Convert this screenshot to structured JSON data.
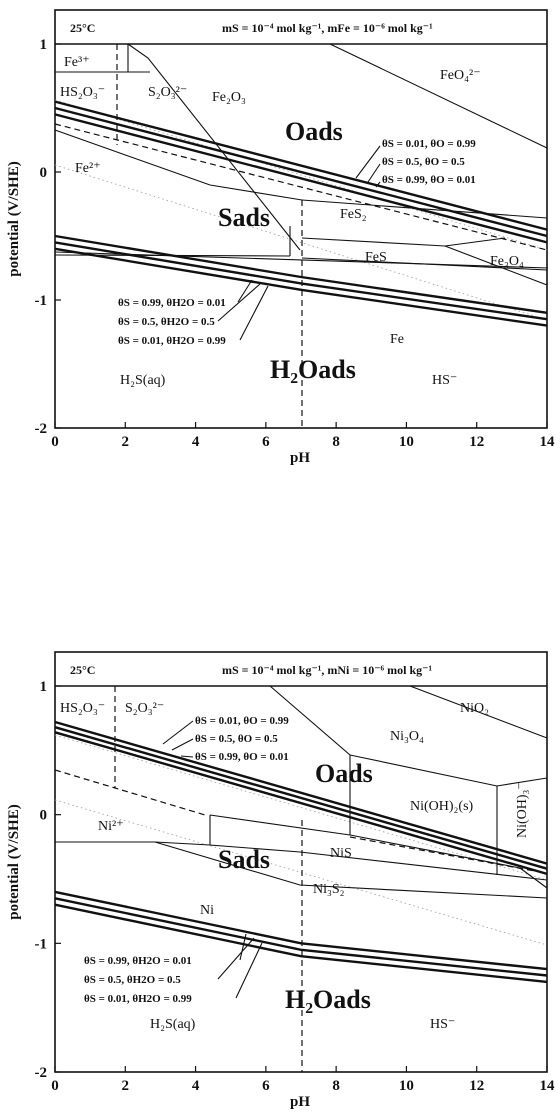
{
  "charts": [
    {
      "id": "fe",
      "header": {
        "temp": "25°C",
        "conc": "mS = 10⁻⁴ mol kg⁻¹, mFe = 10⁻⁶ mol kg⁻¹"
      },
      "regions": {
        "fe3": "Fe³⁺",
        "hs2o3": "HS₂O₃⁻",
        "s2o3": "S₂O₃²⁻",
        "fe2o3": "Fe₂O₃",
        "feo4": "FeO₄²⁻",
        "oads": "Oads",
        "fe2": "Fe²⁺",
        "sads": "Sads",
        "fes2": "FeS₂",
        "fes": "FeS",
        "fe3o4": "Fe₃O₄",
        "h2oads": "H₂Oads",
        "fe": "Fe",
        "h2s": "H₂S(aq)",
        "hs": "HS⁻"
      },
      "theta_o": [
        "θS = 0.01, θO = 0.99",
        "θS = 0.5, θO = 0.5",
        "θS = 0.99, θO = 0.01"
      ],
      "theta_h2o": [
        "θS = 0.99, θH2O = 0.01",
        "θS = 0.5, θH2O = 0.5",
        "θS = 0.01, θH2O = 0.99"
      ]
    },
    {
      "id": "ni",
      "header": {
        "temp": "25°C",
        "conc": "mS = 10⁻⁴ mol kg⁻¹, mNi = 10⁻⁶ mol kg⁻¹"
      },
      "regions": {
        "hs2o3": "HS₂O₃⁻",
        "s2o3": "S₂O₃²⁻",
        "nio2": "NiO₂",
        "ni3o4": "Ni₃O₄",
        "oads": "Oads",
        "nioh2": "Ni(OH)₂(s)",
        "nioh3": "Ni(OH)₃⁻",
        "ni2": "Ni²⁺",
        "sads": "Sads",
        "nis": "NiS",
        "ni3s2": "Ni₃S₂",
        "ni": "Ni",
        "h2oads": "H₂Oads",
        "h2s": "H₂S(aq)",
        "hs": "HS⁻"
      },
      "theta_o": [
        "θS = 0.01, θO = 0.99",
        "θS = 0.5, θO = 0.5",
        "θS = 0.99, θO = 0.01"
      ],
      "theta_h2o": [
        "θS = 0.99, θH2O = 0.01",
        "θS = 0.5, θH2O = 0.5",
        "θS = 0.01, θH2O = 0.99"
      ]
    }
  ],
  "chart_data": [
    {
      "type": "line",
      "xlabel": "pH",
      "ylabel": "potential (V/SHE)",
      "xlim": [
        0,
        14
      ],
      "ylim": [
        -2,
        1
      ],
      "xticks": [
        0,
        2,
        4,
        6,
        8,
        10,
        12,
        14
      ],
      "yticks": [
        1,
        0,
        -1,
        -2
      ],
      "ytick_labels": [
        "1",
        "0",
        "-1",
        "-2"
      ],
      "series": [
        {
          "values": [
            [
              0,
              0.55
            ],
            [
              14,
              -0.45
            ]
          ]
        },
        {
          "values": [
            [
              0,
              0.5
            ],
            [
              14,
              -0.5
            ]
          ]
        },
        {
          "values": [
            [
              0,
              0.45
            ],
            [
              14,
              -0.55
            ]
          ]
        },
        {
          "values": [
            [
              0,
              -0.5
            ],
            [
              7,
              -0.82
            ],
            [
              14,
              -1.1
            ]
          ]
        },
        {
          "values": [
            [
              0,
              -0.55
            ],
            [
              7,
              -0.87
            ],
            [
              14,
              -1.15
            ]
          ]
        },
        {
          "values": [
            [
              0,
              -0.6
            ],
            [
              7,
              -0.92
            ],
            [
              14,
              -1.2
            ]
          ]
        }
      ]
    },
    {
      "type": "line",
      "xlabel": "pH",
      "ylabel": "potential (V/SHE)",
      "xlim": [
        0,
        14
      ],
      "ylim": [
        -2,
        1
      ],
      "xticks": [
        0,
        2,
        4,
        6,
        8,
        10,
        12,
        14
      ],
      "yticks": [
        1,
        0,
        -1,
        -2
      ],
      "ytick_labels": [
        "1",
        "0",
        "-1",
        "-2"
      ],
      "series": [
        {
          "values": [
            [
              0,
              0.72
            ],
            [
              14,
              -0.38
            ]
          ]
        },
        {
          "values": [
            [
              0,
              0.68
            ],
            [
              14,
              -0.42
            ]
          ]
        },
        {
          "values": [
            [
              0,
              0.64
            ],
            [
              14,
              -0.46
            ]
          ]
        },
        {
          "values": [
            [
              0,
              -0.6
            ],
            [
              7,
              -1.0
            ],
            [
              14,
              -1.2
            ]
          ]
        },
        {
          "values": [
            [
              0,
              -0.65
            ],
            [
              7,
              -1.05
            ],
            [
              14,
              -1.25
            ]
          ]
        },
        {
          "values": [
            [
              0,
              -0.7
            ],
            [
              7,
              -1.1
            ],
            [
              14,
              -1.3
            ]
          ]
        }
      ]
    }
  ]
}
